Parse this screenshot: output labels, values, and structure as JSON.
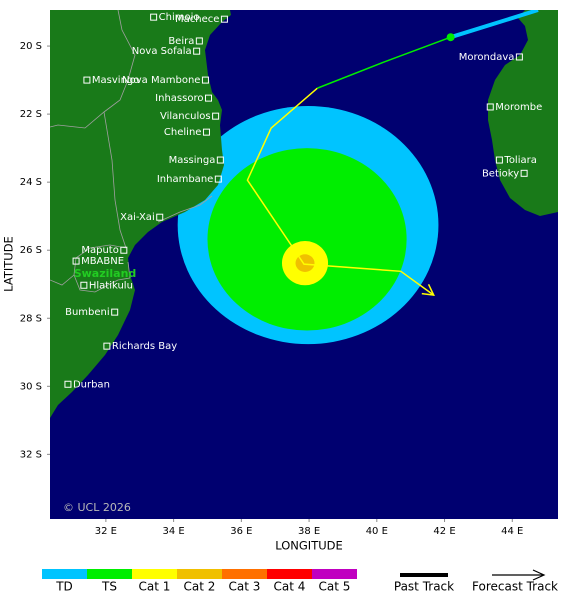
{
  "chart_data": {
    "type": "map",
    "xlabel": "LONGITUDE",
    "ylabel": "LATITUDE",
    "xlim": [
      30.35,
      45.35
    ],
    "ylim": [
      -33.9,
      -18.94
    ],
    "xticks": [
      {
        "value": 32,
        "label": "32 E"
      },
      {
        "value": 34,
        "label": "34 E"
      },
      {
        "value": 36,
        "label": "36 E"
      },
      {
        "value": 38,
        "label": "38 E"
      },
      {
        "value": 40,
        "label": "40 E"
      },
      {
        "value": 42,
        "label": "42 E"
      },
      {
        "value": 44,
        "label": "44 E"
      }
    ],
    "yticks": [
      {
        "value": -20,
        "label": "20 S"
      },
      {
        "value": -22,
        "label": "22 S"
      },
      {
        "value": -24,
        "label": "24 S"
      },
      {
        "value": -26,
        "label": "26 S"
      },
      {
        "value": -28,
        "label": "28 S"
      },
      {
        "value": -30,
        "label": "30 S"
      },
      {
        "value": -32,
        "label": "32 S"
      }
    ],
    "copyright": "© UCL 2026",
    "country_label": "Swaziland",
    "cities": [
      {
        "name": "Chimoio",
        "lon": 33.41,
        "lat": -19.15
      },
      {
        "name": "Machece",
        "lon": 35.5,
        "lat": -19.21
      },
      {
        "name": "Beira",
        "lon": 34.76,
        "lat": -19.85
      },
      {
        "name": "Nova Sofala",
        "lon": 34.68,
        "lat": -20.15
      },
      {
        "name": "Masvingo",
        "lon": 31.44,
        "lat": -21.0
      },
      {
        "name": "Nova Mambone",
        "lon": 34.94,
        "lat": -21.0
      },
      {
        "name": "Inhassoro",
        "lon": 35.03,
        "lat": -21.53
      },
      {
        "name": "Vilanculos",
        "lon": 35.24,
        "lat": -22.06
      },
      {
        "name": "Cheline",
        "lon": 34.97,
        "lat": -22.53
      },
      {
        "name": "Massinga",
        "lon": 35.38,
        "lat": -23.35
      },
      {
        "name": "Inhambane",
        "lon": 35.32,
        "lat": -23.91
      },
      {
        "name": "Xai-Xai",
        "lon": 33.59,
        "lat": -25.03
      },
      {
        "name": "Maputo",
        "lon": 32.53,
        "lat": -26.0
      },
      {
        "name": "MBABNE",
        "lon": 31.12,
        "lat": -26.32
      },
      {
        "name": "Hlatikulu",
        "lon": 31.35,
        "lat": -27.03
      },
      {
        "name": "Bumbeni",
        "lon": 32.26,
        "lat": -27.82
      },
      {
        "name": "Richards Bay",
        "lon": 32.03,
        "lat": -28.82
      },
      {
        "name": "Durban",
        "lon": 30.88,
        "lat": -29.94
      },
      {
        "name": "Morondava",
        "lon": 44.21,
        "lat": -20.32
      },
      {
        "name": "Morombe",
        "lon": 43.35,
        "lat": -21.79
      },
      {
        "name": "Toliara",
        "lon": 43.62,
        "lat": -23.35
      },
      {
        "name": "Betioky",
        "lon": 44.35,
        "lat": -23.74
      }
    ],
    "wind_field": [
      {
        "color": "#00c4ff",
        "lon": 37.97,
        "lat": -25.26,
        "rx": 3.85,
        "ry": 3.5
      },
      {
        "color": "#00ee00",
        "lon": 37.94,
        "lat": -25.68,
        "rx": 2.94,
        "ry": 2.68
      },
      {
        "color": "#ffff00",
        "lon": 37.88,
        "lat": -26.38,
        "rx": 0.68,
        "ry": 0.65
      },
      {
        "color": "#f0c000",
        "lon": 37.88,
        "lat": -26.38,
        "rx": 0.28,
        "ry": 0.26
      }
    ],
    "past_track": [
      {
        "color": "#00c4ff",
        "lon": [
          44.76,
          42.18
        ],
        "lat": [
          -18.94,
          -19.74
        ]
      }
    ],
    "forecast_track": [
      {
        "color": "#00ee00",
        "lon": [
          42.18,
          40.21,
          38.24
        ],
        "lat": [
          -19.74,
          -20.47,
          -21.24
        ]
      },
      {
        "color": "#ffff00",
        "lon": [
          38.24,
          36.88,
          36.18,
          37.85,
          40.71,
          41.68
        ],
        "lat": [
          -21.24,
          -22.41,
          -23.94,
          -26.41,
          -26.62,
          -27.32
        ]
      }
    ],
    "position": {
      "color": "#00ee00",
      "lon": 42.18,
      "lat": -19.74
    },
    "legend": {
      "categories": [
        {
          "label": "TD",
          "color": "#00c4ff"
        },
        {
          "label": "TS",
          "color": "#00ee00"
        },
        {
          "label": "Cat 1",
          "color": "#ffff00"
        },
        {
          "label": "Cat 2",
          "color": "#f0c000"
        },
        {
          "label": "Cat 3",
          "color": "#ff7000"
        },
        {
          "label": "Cat 4",
          "color": "#ff0000"
        },
        {
          "label": "Cat 5",
          "color": "#c000c0"
        }
      ],
      "past_track": "Past Track",
      "forecast_track": "Forecast Track"
    }
  }
}
